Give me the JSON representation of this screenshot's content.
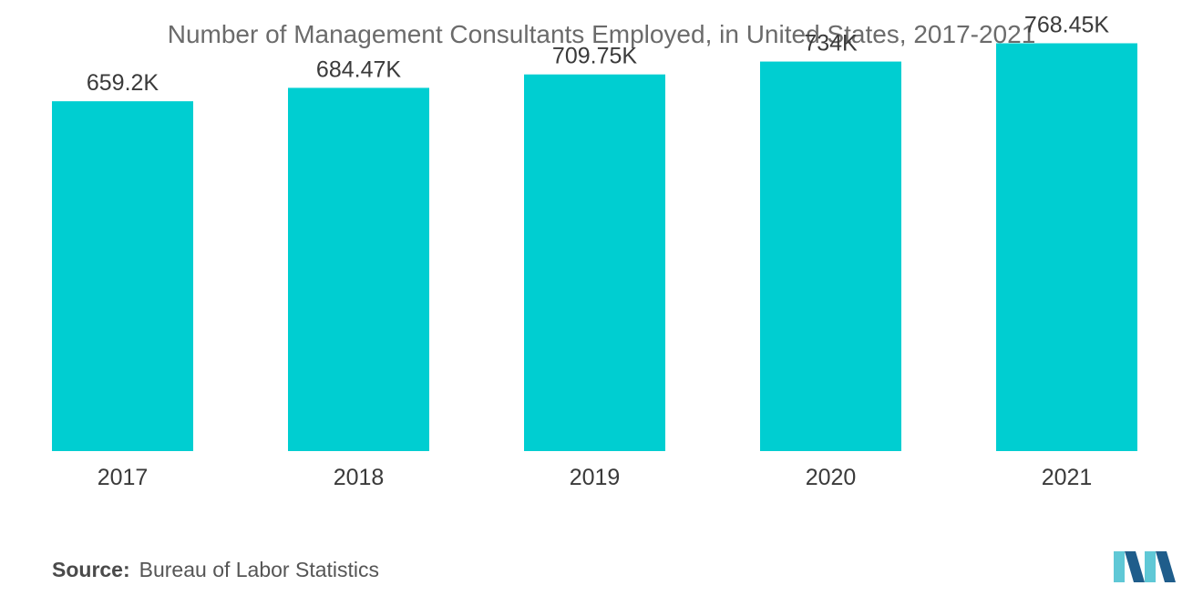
{
  "title": "Number of Management Consultants Employed, in United States, 2017-2021",
  "source": {
    "label": "Source:",
    "text": "Bureau of Labor Statistics"
  },
  "logo": {
    "icon": "mordor-intelligence-logo",
    "colors": [
      "#5fc8d6",
      "#1f5d8b"
    ]
  },
  "chart_data": {
    "type": "bar",
    "title": "Number of Management Consultants Employed, in United States, 2017-2021",
    "xlabel": "",
    "ylabel": "",
    "categories": [
      "2017",
      "2018",
      "2019",
      "2020",
      "2021"
    ],
    "values": [
      659.2,
      684.47,
      709.75,
      734,
      768.45
    ],
    "value_labels": [
      "659.2K",
      "684.47K",
      "709.75K",
      "734K",
      "768.45K"
    ],
    "unit": "thousand",
    "ylim": [
      0,
      850
    ],
    "bar_color": "#00ced1",
    "grid": false,
    "legend": "none"
  }
}
